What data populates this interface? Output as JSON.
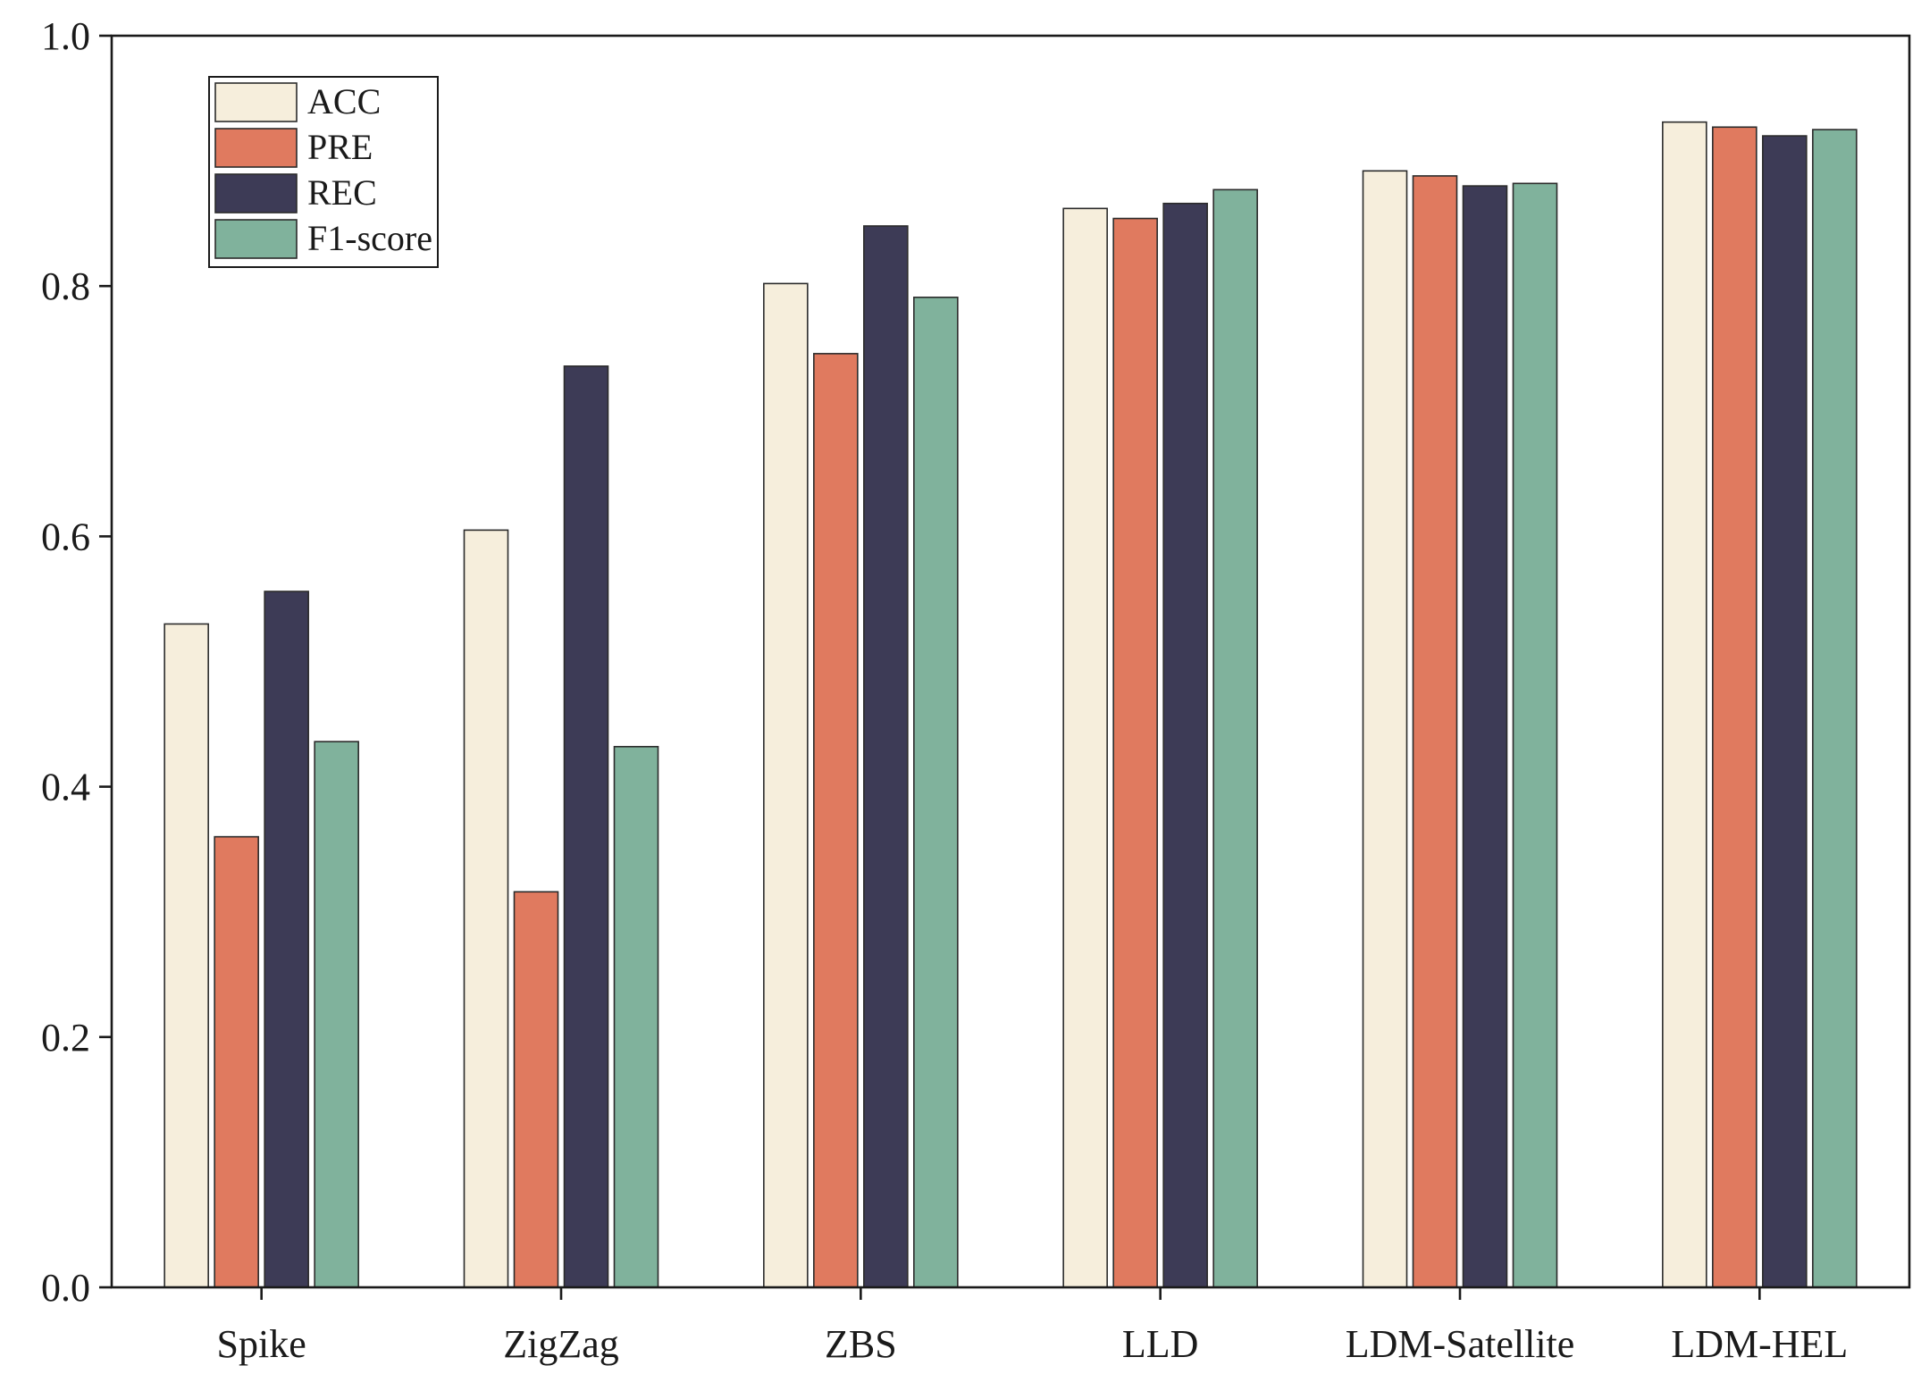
{
  "chart_data": {
    "type": "bar",
    "title": "",
    "xlabel": "",
    "ylabel": "",
    "ylim": [
      0,
      1.0
    ],
    "yticks": [
      "0.0",
      "0.2",
      "0.4",
      "0.6",
      "0.8",
      "1.0"
    ],
    "ytick_values": [
      0.0,
      0.2,
      0.4,
      0.6,
      0.8,
      1.0
    ],
    "grid": false,
    "legend_position": "top-left",
    "categories": [
      "Spike",
      "ZigZag",
      "ZBS",
      "LLD",
      "LDM-Satellite",
      "LDM-HEL"
    ],
    "series": [
      {
        "name": "ACC",
        "color": "#f6eedc",
        "values": [
          0.53,
          0.605,
          0.802,
          0.862,
          0.892,
          0.931
        ]
      },
      {
        "name": "PRE",
        "color": "#e07a5f",
        "values": [
          0.36,
          0.316,
          0.746,
          0.854,
          0.888,
          0.927
        ]
      },
      {
        "name": "REC",
        "color": "#3d3b56",
        "values": [
          0.556,
          0.736,
          0.848,
          0.866,
          0.88,
          0.92
        ]
      },
      {
        "name": "F1-score",
        "color": "#80b29c",
        "values": [
          0.436,
          0.432,
          0.791,
          0.877,
          0.882,
          0.925
        ]
      }
    ]
  }
}
